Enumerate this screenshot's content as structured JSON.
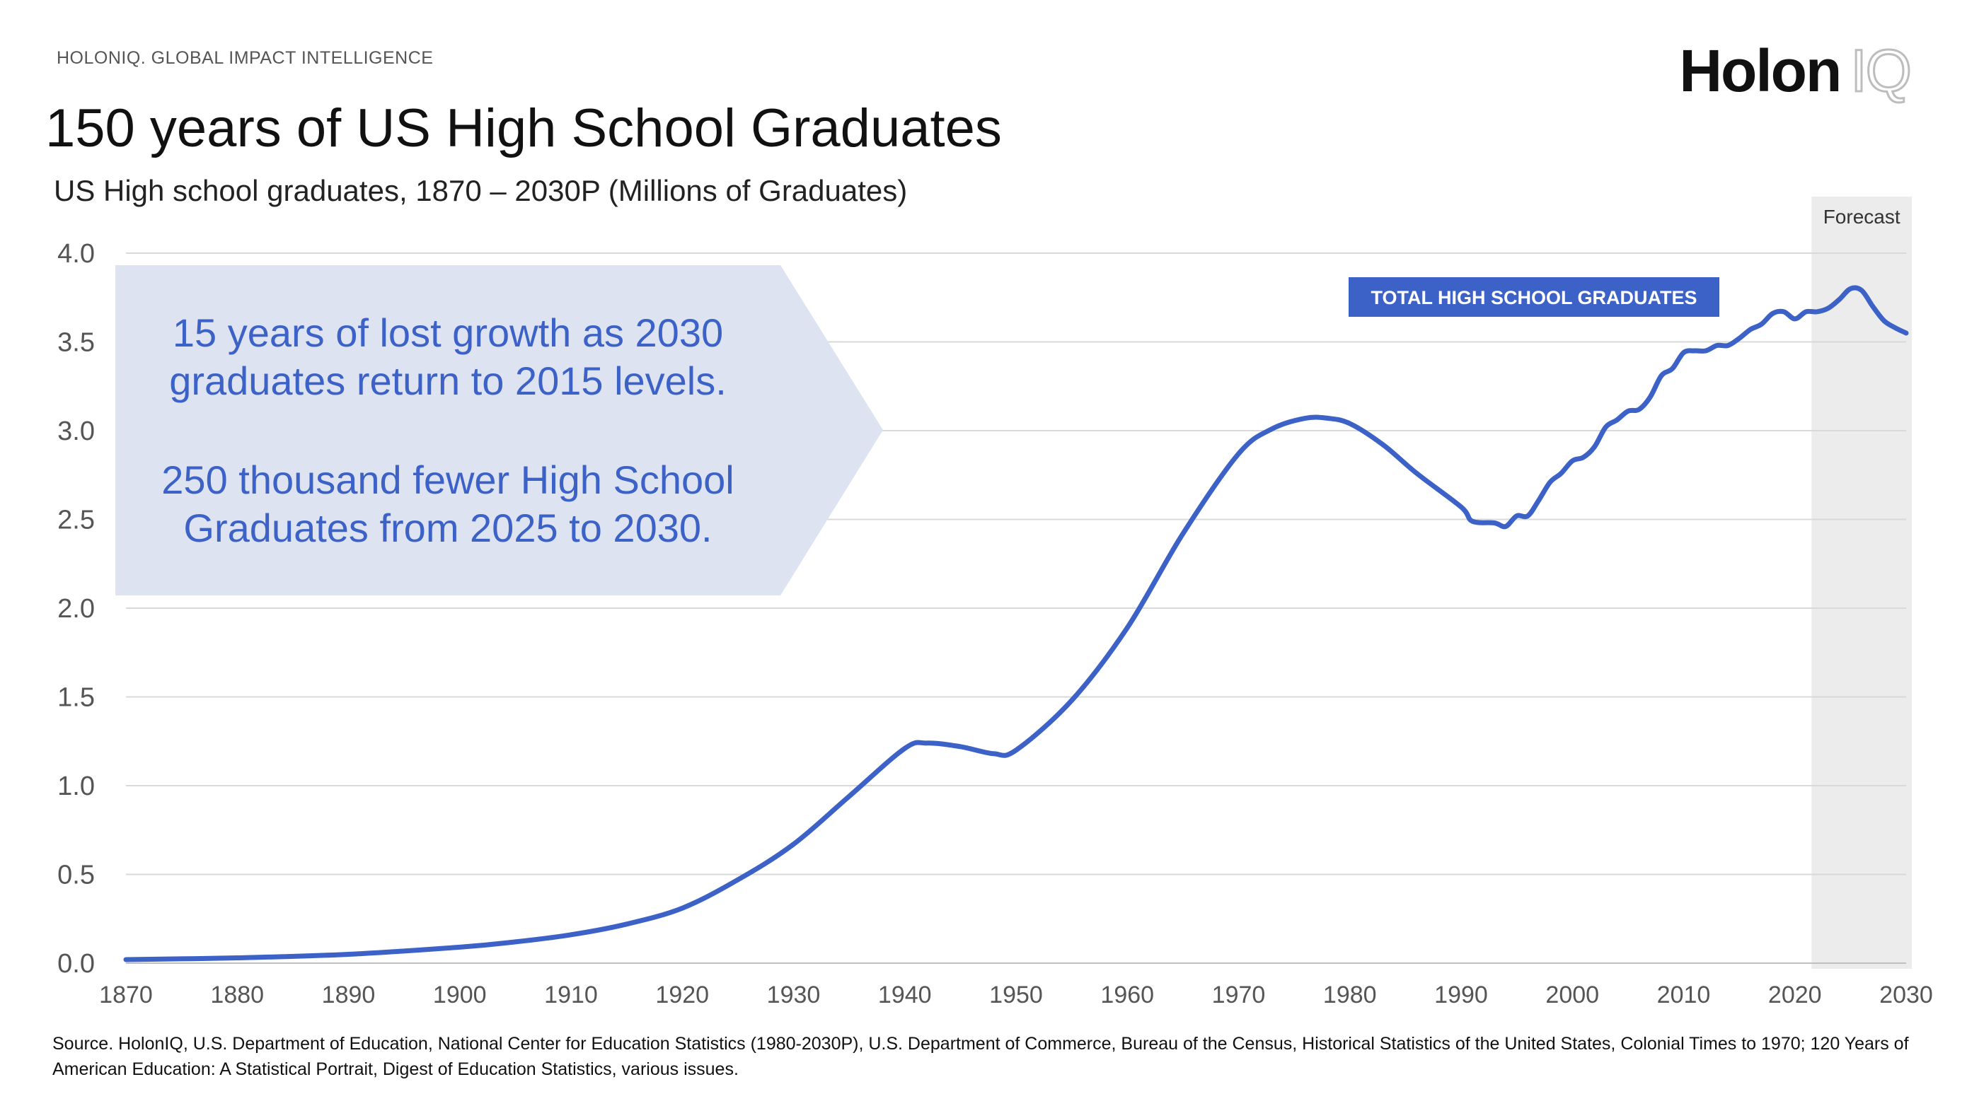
{
  "header": {
    "kicker": "HOLONIQ. GLOBAL IMPACT INTELLIGENCE",
    "title": "150 years of US High School Graduates",
    "subtitle": "US High school graduates, 1870 – 2030P (Millions of Graduates)"
  },
  "logo": {
    "holon": "Holon",
    "iq": "IQ"
  },
  "callout": {
    "line1": "15 years of lost growth as 2030",
    "line2": "graduates return to 2015 levels.",
    "line3": "250 thousand fewer High School",
    "line4": "Graduates from 2025 to 2030."
  },
  "source": "Source. HolonIQ, U.S. Department of Education, National Center for Education Statistics (1980-2030P), U.S. Department of Commerce, Bureau of the Census, Historical Statistics of the United States, Colonial Times to 1970; 120 Years of American Education: A Statistical Portrait, Digest of Education Statistics, various issues.",
  "colors": {
    "line": "#3c62c8",
    "callout_bg": "#dde3f0",
    "callout_text": "#3c62c8",
    "forecast_bg": "#ececec",
    "grid": "#d9d9d9"
  },
  "chart_data": {
    "type": "line",
    "title": "150 years of US High School Graduates",
    "ylabel": "Millions of Graduates",
    "xlabel": "",
    "xlim": [
      1870,
      2030
    ],
    "ylim": [
      0,
      4.0
    ],
    "x_ticks": [
      1870,
      1880,
      1890,
      1900,
      1910,
      1920,
      1930,
      1940,
      1950,
      1960,
      1970,
      1980,
      1990,
      2000,
      2010,
      2020,
      2030
    ],
    "y_ticks": [
      "0.0",
      "0.5",
      "1.0",
      "1.5",
      "2.0",
      "2.5",
      "3.0",
      "3.5",
      "4.0"
    ],
    "grid": true,
    "forecast_region": {
      "label": "Forecast",
      "from": 2021.5,
      "to": 2030
    },
    "series": [
      {
        "name": "TOTAL HIGH SCHOOL GRADUATES",
        "x": [
          1870,
          1880,
          1890,
          1900,
          1905,
          1910,
          1915,
          1920,
          1925,
          1930,
          1935,
          1940,
          1942,
          1945,
          1948,
          1950,
          1955,
          1960,
          1965,
          1970,
          1973,
          1976,
          1978,
          1980,
          1983,
          1986,
          1990,
          1991,
          1993,
          1994,
          1995,
          1996,
          1997,
          1998,
          1999,
          2000,
          2001,
          2002,
          2003,
          2004,
          2005,
          2006,
          2007,
          2008,
          2009,
          2010,
          2011,
          2012,
          2013,
          2014,
          2015,
          2016,
          2017,
          2018,
          2019,
          2020,
          2021,
          2022,
          2023,
          2024,
          2025,
          2026,
          2027,
          2028,
          2029,
          2030
        ],
        "values": [
          0.02,
          0.03,
          0.05,
          0.09,
          0.12,
          0.16,
          0.22,
          0.31,
          0.47,
          0.67,
          0.94,
          1.21,
          1.24,
          1.22,
          1.18,
          1.2,
          1.48,
          1.89,
          2.42,
          2.87,
          3.01,
          3.07,
          3.07,
          3.04,
          2.92,
          2.76,
          2.57,
          2.49,
          2.48,
          2.46,
          2.52,
          2.52,
          2.61,
          2.71,
          2.76,
          2.83,
          2.85,
          2.91,
          3.02,
          3.06,
          3.11,
          3.12,
          3.19,
          3.31,
          3.35,
          3.44,
          3.45,
          3.45,
          3.48,
          3.48,
          3.52,
          3.57,
          3.6,
          3.66,
          3.67,
          3.63,
          3.67,
          3.67,
          3.69,
          3.74,
          3.8,
          3.79,
          3.7,
          3.62,
          3.58,
          3.55
        ]
      }
    ],
    "legend_label": "TOTAL HIGH SCHOOL GRADUATES"
  }
}
